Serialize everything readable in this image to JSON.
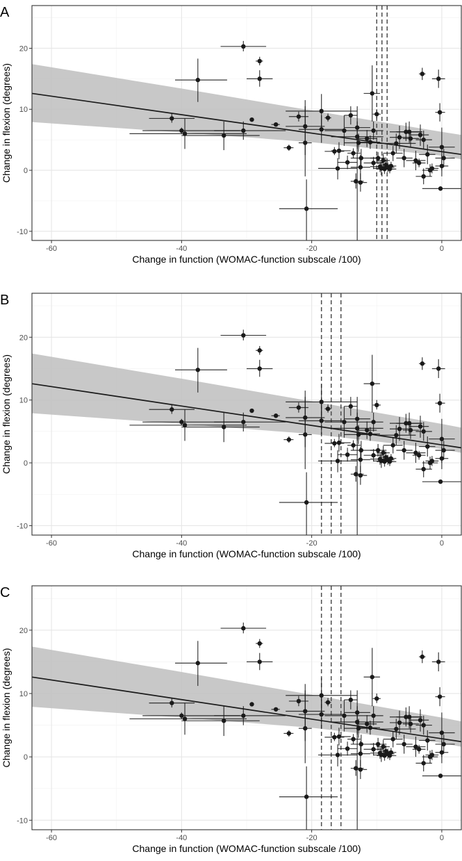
{
  "figure": {
    "panels": [
      "A",
      "B",
      "C"
    ]
  },
  "colors": {
    "band": "#bebebe",
    "line": "#1a1a1a",
    "point": "#1a1a1a",
    "grid_major": "#e6e6e6",
    "grid_minor": "#f2f2f2",
    "frame": "#333333",
    "dashed": "#4d4d4d"
  },
  "chart_data": [
    {
      "panel": "A",
      "type": "scatter",
      "xlabel": "Change in function (WOMAC-function subscale /100)",
      "ylabel": "Change in flexion (degrees)",
      "xlim": [
        -63,
        3
      ],
      "ylim": [
        -11.5,
        27
      ],
      "xticks": [
        -60,
        -40,
        -20,
        0
      ],
      "yticks": [
        -10,
        0,
        10,
        20
      ],
      "xtick_labels": [
        "-60",
        "-40",
        "-20",
        "0"
      ],
      "ytick_labels": [
        "-10",
        "0",
        "10",
        "20"
      ],
      "grid": true,
      "regression": {
        "x": [
          -63,
          3
        ],
        "y": [
          12.6,
          2.6
        ]
      },
      "ci_band": {
        "x": [
          -63,
          -40,
          -20,
          0,
          3
        ],
        "lower": [
          7.9,
          6.2,
          4.6,
          2.4,
          1.8
        ],
        "upper": [
          17.4,
          13.4,
          9.8,
          6.3,
          5.8
        ]
      },
      "vlines": [
        -10.0,
        -9.2,
        -8.4
      ],
      "points": [
        {
          "x": -41.5,
          "y": 8.5,
          "xlo": -45,
          "xhi": -38,
          "ylo": 7.8,
          "yhi": 9.3
        },
        {
          "x": -40.0,
          "y": 6.5,
          "xlo": -46,
          "xhi": -31,
          "ylo": 6.0,
          "yhi": 7.0
        },
        {
          "x": -39.5,
          "y": 6.0,
          "xlo": -48,
          "xhi": -30,
          "ylo": 3.5,
          "yhi": 8.5
        },
        {
          "x": -37.5,
          "y": 14.8,
          "xlo": -41,
          "xhi": -33,
          "ylo": 11.2,
          "yhi": 18.3
        },
        {
          "x": -33.5,
          "y": 5.7,
          "xlo": -40,
          "xhi": -28,
          "ylo": 3.3,
          "yhi": 8.0
        },
        {
          "x": -30.5,
          "y": 20.3,
          "xlo": -34,
          "xhi": -27,
          "ylo": 19.5,
          "yhi": 21.2
        },
        {
          "x": -30.5,
          "y": 6.5,
          "xlo": -35,
          "xhi": -24,
          "ylo": 5.0,
          "yhi": 8.0
        },
        {
          "x": -29.2,
          "y": 8.3
        },
        {
          "x": -28.0,
          "y": 17.9,
          "xlo": -28.6,
          "xhi": -27.5,
          "ylo": 17.2,
          "yhi": 18.6
        },
        {
          "x": -28.0,
          "y": 15.0,
          "xlo": -30,
          "xhi": -26,
          "ylo": 13.7,
          "yhi": 16.4
        },
        {
          "x": -25.5,
          "y": 7.5,
          "xlo": -26.2,
          "xhi": -24.9,
          "ylo": 7.3,
          "yhi": 7.7
        },
        {
          "x": -23.5,
          "y": 3.7,
          "xlo": -24.3,
          "xhi": -22.8,
          "ylo": 3.2,
          "yhi": 4.2
        },
        {
          "x": -22.0,
          "y": 8.8,
          "xlo": -23.5,
          "xhi": -20.5,
          "ylo": 8.0,
          "yhi": 9.6
        },
        {
          "x": -21.0,
          "y": 7.2,
          "xlo": -24,
          "xhi": -18,
          "ylo": 2.5,
          "yhi": 11.5
        },
        {
          "x": -21.0,
          "y": 4.5,
          "xlo": -22,
          "xhi": -20,
          "ylo": -1.0,
          "yhi": 10.5
        },
        {
          "x": -20.8,
          "y": -6.3,
          "xlo": -25,
          "xhi": -16,
          "ylo": -11.5,
          "yhi": -1.5
        },
        {
          "x": -18.5,
          "y": 9.7,
          "xlo": -24,
          "xhi": -13,
          "ylo": 7.0,
          "yhi": 12.5
        },
        {
          "x": -18.5,
          "y": 6.7,
          "xlo": -22,
          "xhi": -15,
          "ylo": 4.5,
          "yhi": 9.0
        },
        {
          "x": -17.5,
          "y": 8.6,
          "xlo": -18,
          "xhi": -17,
          "ylo": 8.0,
          "yhi": 9.3
        },
        {
          "x": -16.5,
          "y": 3.1,
          "xlo": -18,
          "xhi": -15,
          "ylo": 2.5,
          "yhi": 3.8
        },
        {
          "x": -16.0,
          "y": 0.3,
          "xlo": -19,
          "xhi": -13,
          "ylo": -1.5,
          "yhi": 2.0
        },
        {
          "x": -15.8,
          "y": 3.2,
          "xlo": -17,
          "xhi": -14,
          "ylo": 1.8,
          "yhi": 4.6
        },
        {
          "x": -15.0,
          "y": 6.5,
          "xlo": -18,
          "xhi": -12,
          "ylo": 4.0,
          "yhi": 9.0
        },
        {
          "x": -14.5,
          "y": 1.3,
          "xlo": -16,
          "xhi": -13,
          "ylo": 0.2,
          "yhi": 2.4
        },
        {
          "x": -14.0,
          "y": 9.0,
          "xlo": -15,
          "xhi": -13,
          "ylo": 7.5,
          "yhi": 10.5
        },
        {
          "x": -13.6,
          "y": 2.8,
          "xlo": -14.5,
          "xhi": -12.5,
          "ylo": 2.0,
          "yhi": 3.6
        },
        {
          "x": -13.2,
          "y": -1.8,
          "xlo": -14,
          "xhi": -12,
          "ylo": -3.0,
          "yhi": -0.5
        },
        {
          "x": -13.0,
          "y": 7.0,
          "xlo": -15,
          "xhi": -11,
          "ylo": 3.5,
          "yhi": 10.5
        },
        {
          "x": -13.0,
          "y": 5.5,
          "xlo": -17,
          "xhi": -9,
          "ylo": -11.5,
          "yhi": 8.0
        },
        {
          "x": -12.8,
          "y": 4.5,
          "xlo": -15,
          "xhi": -10,
          "ylo": 3.0,
          "yhi": 6.0
        },
        {
          "x": -12.5,
          "y": 0.5,
          "xlo": -14,
          "xhi": -11,
          "ylo": -1.5,
          "yhi": 2.5
        },
        {
          "x": -12.4,
          "y": 2.0,
          "xlo": -14,
          "xhi": -10,
          "ylo": 0.5,
          "yhi": 3.5
        },
        {
          "x": -12.5,
          "y": -2.0,
          "xlo": -13.5,
          "xhi": -11.5,
          "ylo": -3.5,
          "yhi": -0.5
        },
        {
          "x": -11.5,
          "y": 5.2,
          "xlo": -13,
          "xhi": -10,
          "ylo": 3.8,
          "yhi": 6.6
        },
        {
          "x": -11.0,
          "y": 4.6,
          "xlo": -12.5,
          "xhi": -9.5,
          "ylo": 3.5,
          "yhi": 5.7
        },
        {
          "x": -10.7,
          "y": 12.6,
          "xlo": -12,
          "xhi": -9.5,
          "ylo": 8.0,
          "yhi": 17.2
        },
        {
          "x": -10.5,
          "y": 6.5,
          "xlo": -12,
          "xhi": -9,
          "ylo": 5.0,
          "yhi": 8.0
        },
        {
          "x": -10.5,
          "y": 1.2,
          "xlo": -12,
          "xhi": -9,
          "ylo": 0.2,
          "yhi": 2.2
        },
        {
          "x": -10.0,
          "y": 9.2,
          "xlo": -10.6,
          "xhi": -9.4,
          "ylo": 8.5,
          "yhi": 10.0
        },
        {
          "x": -9.8,
          "y": 2.0,
          "xlo": -11,
          "xhi": -8.5,
          "ylo": 1.0,
          "yhi": 3.0
        },
        {
          "x": -9.5,
          "y": 0.6,
          "xlo": -11,
          "xhi": -8,
          "ylo": -0.3,
          "yhi": 1.5
        },
        {
          "x": -9.3,
          "y": 0.3,
          "xlo": -10.5,
          "xhi": -8,
          "ylo": -0.8,
          "yhi": 1.4
        },
        {
          "x": -9.0,
          "y": 1.6,
          "xlo": -10,
          "xhi": -8,
          "ylo": 0.5,
          "yhi": 2.7
        },
        {
          "x": -8.8,
          "y": 0.2,
          "xlo": -10,
          "xhi": -7.5,
          "ylo": -0.6,
          "yhi": 1.0
        },
        {
          "x": -8.6,
          "y": 0.9,
          "xlo": -9.5,
          "xhi": -7.6,
          "ylo": 0.0,
          "yhi": 1.8
        },
        {
          "x": -8.3,
          "y": 0.5,
          "xlo": -9.2,
          "xhi": -7.3,
          "ylo": -0.3,
          "yhi": 1.3
        },
        {
          "x": -8.0,
          "y": 0.2,
          "xlo": -9,
          "xhi": -7,
          "ylo": -0.5,
          "yhi": 0.9
        },
        {
          "x": -7.8,
          "y": 0.7,
          "xlo": -8.6,
          "xhi": -7,
          "ylo": 0.0,
          "yhi": 1.4
        },
        {
          "x": -7.5,
          "y": 2.8,
          "xlo": -9,
          "xhi": -6,
          "ylo": 1.5,
          "yhi": 4.0
        },
        {
          "x": -7.0,
          "y": 4.4,
          "xlo": -10,
          "xhi": -4,
          "ylo": 2.8,
          "yhi": 6.0
        },
        {
          "x": -6.5,
          "y": 5.4,
          "xlo": -8,
          "xhi": -5,
          "ylo": 3.5,
          "yhi": 7.3
        },
        {
          "x": -5.8,
          "y": 2.0,
          "xlo": -7,
          "xhi": -4.5,
          "ylo": 0.5,
          "yhi": 3.5
        },
        {
          "x": -5.5,
          "y": 6.3,
          "xlo": -8,
          "xhi": -3,
          "ylo": 4.8,
          "yhi": 7.8
        },
        {
          "x": -5.0,
          "y": 6.3,
          "xlo": -7,
          "xhi": -3,
          "ylo": 4.5,
          "yhi": 8.0
        },
        {
          "x": -4.8,
          "y": 5.2,
          "xlo": -6,
          "xhi": -3.5,
          "ylo": 3.8,
          "yhi": 6.6
        },
        {
          "x": -4.0,
          "y": 1.6,
          "xlo": -5.5,
          "xhi": -2.5,
          "ylo": 0.0,
          "yhi": 3.2
        },
        {
          "x": -3.5,
          "y": 1.2,
          "xlo": -4.5,
          "xhi": -2.5,
          "ylo": 0.5,
          "yhi": 1.9
        },
        {
          "x": -3.3,
          "y": 5.8,
          "xlo": -5,
          "xhi": -2,
          "ylo": 4.0,
          "yhi": 7.5
        },
        {
          "x": -3.0,
          "y": 15.8,
          "xlo": -3.5,
          "xhi": -2.5,
          "ylo": 14.8,
          "yhi": 16.8
        },
        {
          "x": -2.8,
          "y": 5.0,
          "xlo": -4,
          "xhi": -1.5,
          "ylo": 3.5,
          "yhi": 6.5
        },
        {
          "x": -2.8,
          "y": -1.0,
          "xlo": -4,
          "xhi": -1.5,
          "ylo": -2.3,
          "yhi": 0.3
        },
        {
          "x": -2.2,
          "y": 2.6,
          "xlo": -3.5,
          "xhi": -1,
          "ylo": 1.0,
          "yhi": 4.2
        },
        {
          "x": -1.8,
          "y": 0.0,
          "xlo": -3,
          "xhi": -0.6,
          "ylo": -1.0,
          "yhi": 1.0
        },
        {
          "x": -1.5,
          "y": 0.3,
          "xlo": -2.5,
          "xhi": -0.5,
          "ylo": -0.5,
          "yhi": 1.1
        },
        {
          "x": -0.5,
          "y": 15.0,
          "xlo": -1.5,
          "xhi": 0.5,
          "ylo": 13.5,
          "yhi": 16.5
        },
        {
          "x": -0.3,
          "y": 9.5,
          "xlo": -1,
          "xhi": 0.5,
          "ylo": 8.0,
          "yhi": 11.0
        },
        {
          "x": 0.0,
          "y": 3.8,
          "xlo": -2,
          "xhi": 2,
          "ylo": 0.0,
          "yhi": 7.0
        },
        {
          "x": 0.0,
          "y": 0.7,
          "xlo": -1,
          "xhi": 1,
          "ylo": -1.0,
          "yhi": 2.5
        },
        {
          "x": 0.3,
          "y": 2.0,
          "xlo": -1,
          "xhi": 2,
          "ylo": 0.5,
          "yhi": 3.5
        },
        {
          "x": -0.2,
          "y": -3.0,
          "xlo": -3,
          "xhi": 3,
          "ylo": -3.0,
          "yhi": -3.0
        }
      ]
    },
    {
      "panel": "B",
      "type": "scatter",
      "xlabel": "Change in function (WOMAC-function subscale /100)",
      "ylabel": "Change in flexion (degrees)",
      "xlim": [
        -63,
        3
      ],
      "ylim": [
        -11.5,
        27
      ],
      "xticks": [
        -60,
        -40,
        -20,
        0
      ],
      "yticks": [
        -10,
        0,
        10,
        20
      ],
      "xtick_labels": [
        "-60",
        "-40",
        "-20",
        "0"
      ],
      "ytick_labels": [
        "-10",
        "0",
        "10",
        "20"
      ],
      "grid": true,
      "regression": {
        "x": [
          -63,
          3
        ],
        "y": [
          12.6,
          2.4
        ]
      },
      "ci_band": {
        "x": [
          -63,
          -40,
          -20,
          0,
          3
        ],
        "lower": [
          7.9,
          6.2,
          4.6,
          2.2,
          1.6
        ],
        "upper": [
          17.4,
          13.4,
          9.8,
          6.2,
          5.6
        ]
      },
      "vlines": [
        -18.5,
        -17.0,
        -15.5
      ],
      "points": "same as panel A"
    },
    {
      "panel": "C",
      "type": "scatter",
      "xlabel": "Change in function (WOMAC-function subscale /100)",
      "ylabel": "Change in flexion (degrees)",
      "xlim": [
        -63,
        3
      ],
      "ylim": [
        -11.5,
        27
      ],
      "xticks": [
        -60,
        -40,
        -20,
        0
      ],
      "yticks": [
        -10,
        0,
        10,
        20
      ],
      "xtick_labels": [
        "-60",
        "-40",
        "-20",
        "0"
      ],
      "ytick_labels": [
        "-10",
        "0",
        "10",
        "20"
      ],
      "grid": true,
      "regression": {
        "x": [
          -63,
          3
        ],
        "y": [
          12.6,
          2.4
        ]
      },
      "ci_band": {
        "x": [
          -63,
          -40,
          -20,
          0,
          3
        ],
        "lower": [
          7.9,
          6.2,
          4.6,
          2.2,
          1.6
        ],
        "upper": [
          17.4,
          13.4,
          9.8,
          6.2,
          5.6
        ]
      },
      "vlines": [
        -18.5,
        -17.0,
        -15.5
      ],
      "points": "same as panel A"
    }
  ]
}
